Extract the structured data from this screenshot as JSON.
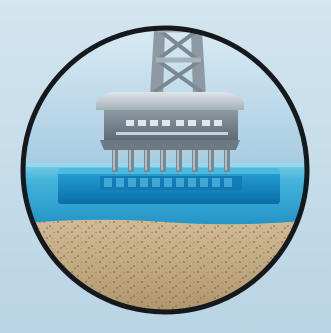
{
  "scene": {
    "subject": "offshore-oil-platform",
    "icons": [
      "derrick-icon",
      "platform-deck-icon",
      "pontoon-icon"
    ]
  },
  "colors": {
    "background_fill": "#c6dce9",
    "frame_ring": "#15191c",
    "sky_top": "#d9eaf3",
    "sky_bottom": "#a9cde2",
    "derrick_steel": "#9aa6af",
    "derrick_dark": "#6b7780",
    "deck_light": "#c8d0d6",
    "deck_dark": "#7d8a93",
    "sea_top": "#4fb9dc",
    "sea_deep": "#1f8ec4",
    "pontoon": "#0e7fbd",
    "seabed_light": "#c7b08a",
    "seabed_dark": "#8a7352"
  }
}
